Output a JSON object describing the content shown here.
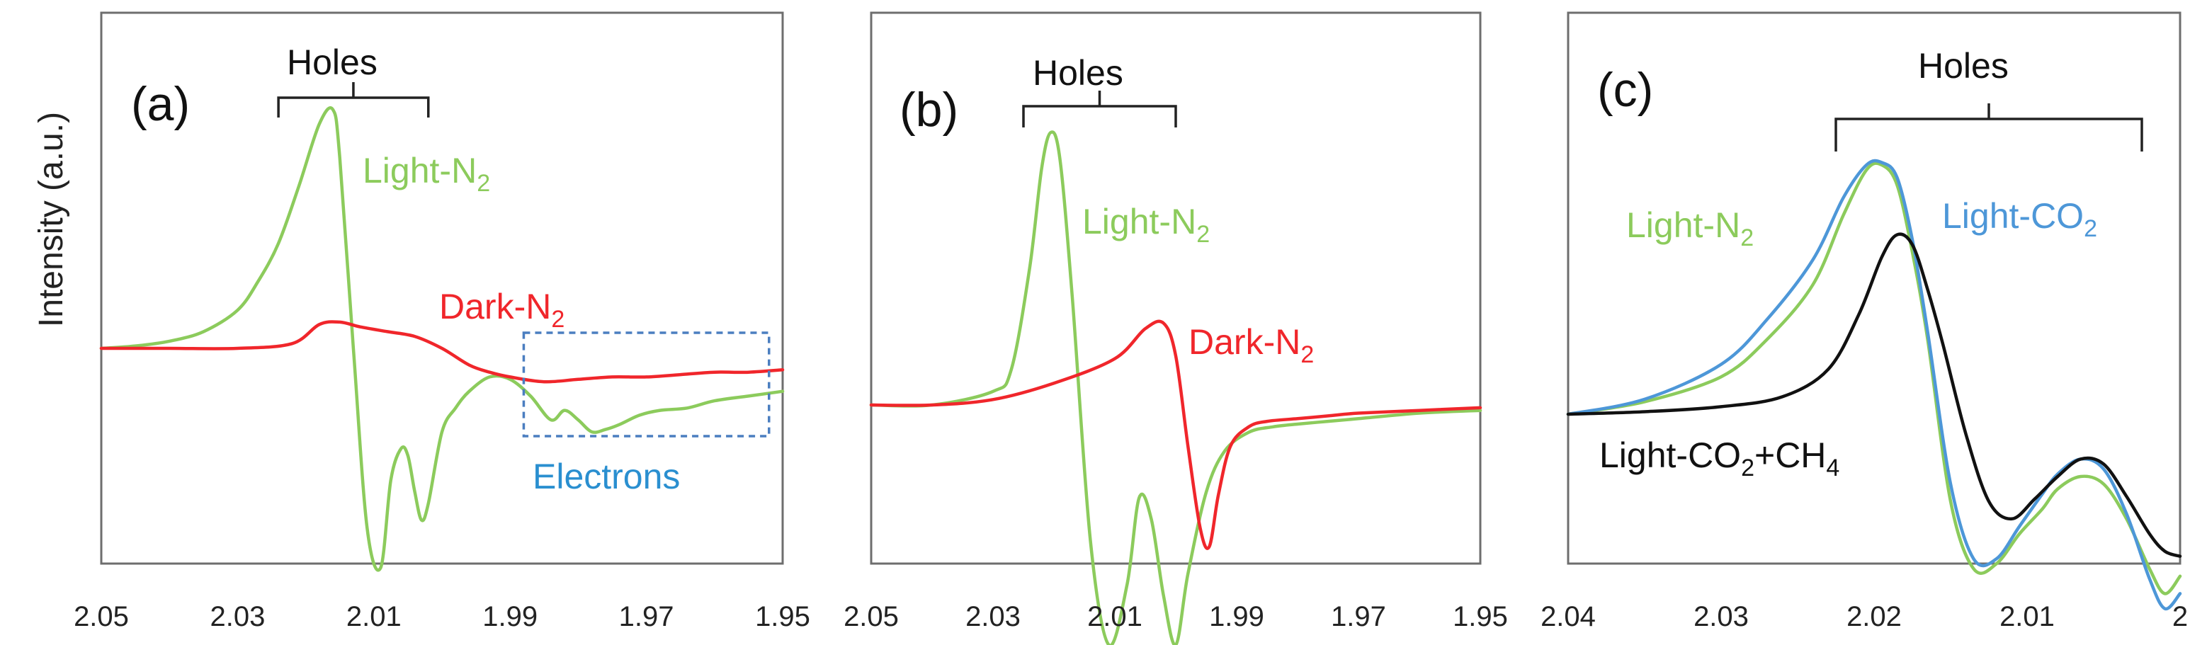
{
  "figure": {
    "y_axis_label": "Intensity (a.u.)"
  },
  "colors": {
    "green": "#8ccb5c",
    "red": "#f0262b",
    "blue": "#4d97d8",
    "black": "#111111",
    "electrons": "#2a8fd0"
  },
  "chart_data": [
    {
      "type": "line",
      "panel_label": "(a)",
      "xlim": [
        2.05,
        1.95
      ],
      "x_ticks": [
        "2.05",
        "2.03",
        "2.01",
        "1.99",
        "1.97",
        "1.95"
      ],
      "ylim": [
        -1,
        1
      ],
      "annotations": {
        "holes": "Holes",
        "electrons": "Electrons",
        "holes_range": [
          2.024,
          2.002
        ],
        "electrons_box": [
          1.988,
          1.952
        ]
      },
      "series": [
        {
          "name": "Light-N2",
          "label_main": "Light-N",
          "label_sub": "2",
          "color": "green",
          "x": [
            2.05,
            2.045,
            2.04,
            2.035,
            2.03,
            2.027,
            2.024,
            2.021,
            2.018,
            2.016,
            2.015,
            2.013,
            2.011,
            2.009,
            2.0075,
            2.006,
            2.005,
            2.004,
            2.003,
            2.002,
            2.0,
            1.998,
            1.996,
            1.993,
            1.99,
            1.987,
            1.984,
            1.982,
            1.98,
            1.978,
            1.976,
            1.974,
            1.971,
            1.968,
            1.964,
            1.96,
            1.955,
            1.95
          ],
          "y": [
            0.0,
            0.01,
            0.03,
            0.07,
            0.16,
            0.28,
            0.44,
            0.68,
            0.94,
            1.0,
            0.8,
            0.0,
            -0.75,
            -0.92,
            -0.55,
            -0.42,
            -0.45,
            -0.6,
            -0.72,
            -0.65,
            -0.35,
            -0.25,
            -0.18,
            -0.12,
            -0.13,
            -0.2,
            -0.3,
            -0.26,
            -0.3,
            -0.35,
            -0.34,
            -0.32,
            -0.28,
            -0.26,
            -0.25,
            -0.22,
            -0.2,
            -0.18
          ]
        },
        {
          "name": "Dark-N2",
          "label_main": "Dark-N",
          "label_sub": "2",
          "color": "red",
          "x": [
            2.05,
            2.04,
            2.03,
            2.022,
            2.018,
            2.015,
            2.012,
            2.008,
            2.004,
            2.0,
            1.996,
            1.993,
            1.99,
            1.985,
            1.98,
            1.975,
            1.97,
            1.965,
            1.96,
            1.955,
            1.95
          ],
          "y": [
            0.0,
            0.0,
            0.0,
            0.02,
            0.1,
            0.11,
            0.09,
            0.07,
            0.05,
            0.0,
            -0.07,
            -0.1,
            -0.12,
            -0.14,
            -0.13,
            -0.12,
            -0.12,
            -0.11,
            -0.1,
            -0.1,
            -0.09
          ]
        }
      ]
    },
    {
      "type": "line",
      "panel_label": "(b)",
      "xlim": [
        2.05,
        1.95
      ],
      "x_ticks": [
        "2.05",
        "2.03",
        "2.01",
        "1.99",
        "1.97",
        "1.95"
      ],
      "ylim": [
        -1,
        1
      ],
      "annotations": {
        "holes": "Holes",
        "holes_range": [
          2.025,
          2.0
        ]
      },
      "series": [
        {
          "name": "Light-N2",
          "label_main": "Light-N",
          "label_sub": "2",
          "color": "green",
          "x": [
            2.05,
            2.04,
            2.03,
            2.027,
            2.024,
            2.022,
            2.0205,
            2.019,
            2.017,
            2.014,
            2.011,
            2.008,
            2.006,
            2.004,
            2.002,
            2.0,
            1.998,
            1.995,
            1.992,
            1.988,
            1.984,
            1.98,
            1.975,
            1.97,
            1.96,
            1.95
          ],
          "y": [
            0.0,
            0.0,
            0.05,
            0.13,
            0.5,
            0.87,
            1.0,
            0.9,
            0.4,
            -0.5,
            -0.88,
            -0.66,
            -0.34,
            -0.42,
            -0.7,
            -0.88,
            -0.62,
            -0.32,
            -0.17,
            -0.1,
            -0.08,
            -0.07,
            -0.06,
            -0.05,
            -0.03,
            -0.02
          ]
        },
        {
          "name": "Dark-N2",
          "label_main": "Dark-N",
          "label_sub": "2",
          "color": "red",
          "x": [
            2.05,
            2.04,
            2.03,
            2.02,
            2.01,
            2.005,
            2.002,
            2.0,
            1.998,
            1.996,
            1.9945,
            1.993,
            1.991,
            1.988,
            1.985,
            1.98,
            1.975,
            1.97,
            1.96,
            1.95
          ],
          "y": [
            0.0,
            0.0,
            0.02,
            0.08,
            0.17,
            0.28,
            0.3,
            0.18,
            -0.15,
            -0.45,
            -0.52,
            -0.33,
            -0.15,
            -0.08,
            -0.06,
            -0.05,
            -0.04,
            -0.03,
            -0.02,
            -0.01
          ]
        }
      ]
    },
    {
      "type": "line",
      "panel_label": "(c)",
      "xlim": [
        2.04,
        2.0
      ],
      "x_ticks": [
        "2.04",
        "2.03",
        "2.02",
        "2.01",
        "2"
      ],
      "ylim": [
        -1,
        1
      ],
      "annotations": {
        "holes": "Holes",
        "holes_range": [
          2.0225,
          2.0025
        ]
      },
      "series": [
        {
          "name": "Light-N2",
          "label_main": "Light-N",
          "label_sub": "2",
          "color": "green",
          "x": [
            2.04,
            2.035,
            2.03,
            2.027,
            2.024,
            2.022,
            2.0205,
            2.0195,
            2.0185,
            2.0175,
            2.0165,
            2.015,
            2.0135,
            2.012,
            2.0105,
            2.009,
            2.008,
            2.0065,
            2.005,
            2.0035,
            2.002,
            2.001,
            2.0
          ],
          "y": [
            0.0,
            0.05,
            0.15,
            0.3,
            0.52,
            0.8,
            0.98,
            1.0,
            0.92,
            0.65,
            0.3,
            -0.35,
            -0.62,
            -0.6,
            -0.48,
            -0.38,
            -0.3,
            -0.25,
            -0.28,
            -0.42,
            -0.62,
            -0.72,
            -0.65
          ]
        },
        {
          "name": "Light-CO2",
          "label_main": "Light-CO",
          "label_sub": "2",
          "color": "blue",
          "x": [
            2.04,
            2.035,
            2.03,
            2.027,
            2.024,
            2.022,
            2.0205,
            2.0195,
            2.0185,
            2.0175,
            2.0165,
            2.015,
            2.0135,
            2.012,
            2.0105,
            2.009,
            2.008,
            2.0065,
            2.005,
            2.0035,
            2.002,
            2.001,
            2.0
          ],
          "y": [
            0.0,
            0.06,
            0.2,
            0.38,
            0.62,
            0.87,
            1.0,
            1.01,
            0.95,
            0.7,
            0.33,
            -0.28,
            -0.58,
            -0.58,
            -0.45,
            -0.32,
            -0.24,
            -0.18,
            -0.22,
            -0.4,
            -0.66,
            -0.78,
            -0.72
          ]
        },
        {
          "name": "Light-CO2+CH4",
          "label_main": "Light-CO",
          "label_sub": "2",
          "label_main2": "+CH",
          "label_sub2": "4",
          "color": "black",
          "x": [
            2.04,
            2.035,
            2.03,
            2.026,
            2.023,
            2.021,
            2.0195,
            2.0185,
            2.0175,
            2.0165,
            2.0155,
            2.014,
            2.0125,
            2.011,
            2.0095,
            2.008,
            2.0065,
            2.005,
            2.0035,
            2.002,
            2.001,
            2.0
          ],
          "y": [
            0.0,
            0.01,
            0.03,
            0.07,
            0.18,
            0.4,
            0.63,
            0.72,
            0.68,
            0.5,
            0.28,
            -0.08,
            -0.35,
            -0.42,
            -0.34,
            -0.25,
            -0.18,
            -0.2,
            -0.33,
            -0.48,
            -0.55,
            -0.57
          ]
        }
      ]
    }
  ]
}
